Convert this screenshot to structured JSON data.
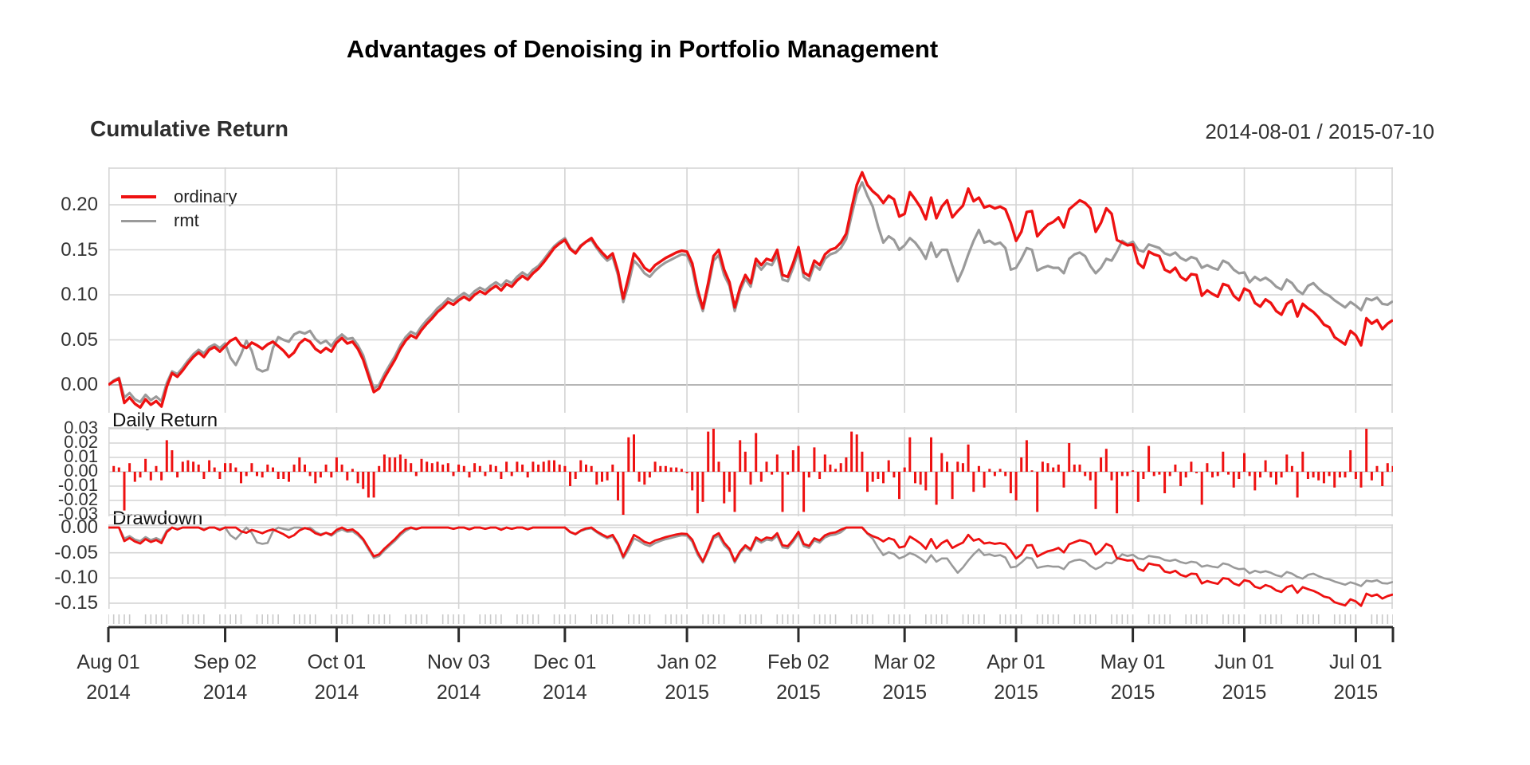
{
  "chart_title": "Advantages of Denoising in Portfolio Management",
  "header": {
    "panel_heading": "Cumulative Return",
    "date_range": "2014-08-01 / 2015-07-10"
  },
  "legend": [
    {
      "label": "ordinary",
      "color": "#ee1111"
    },
    {
      "label": "rmt",
      "color": "#9a9a9a"
    }
  ],
  "colors": {
    "ordinary": "#ee1111",
    "rmt": "#9a9a9a",
    "grid": "#d4d4d4",
    "zero_line": "#9e9e9e",
    "axis": "#2b2b2b",
    "minor_tick": "#c9c9c9",
    "text": "#333333"
  },
  "chart_data": {
    "type": "line",
    "title": "Advantages of Denoising in Portfolio Management",
    "date_range": "2014-08-01 / 2015-07-10",
    "n_days": 243,
    "x_ticks": [
      {
        "day": 0,
        "label": "Aug 01",
        "year": "2014"
      },
      {
        "day": 22,
        "label": "Sep 02",
        "year": "2014"
      },
      {
        "day": 43,
        "label": "Oct 01",
        "year": "2014"
      },
      {
        "day": 66,
        "label": "Nov 03",
        "year": "2014"
      },
      {
        "day": 86,
        "label": "Dec 01",
        "year": "2014"
      },
      {
        "day": 109,
        "label": "Jan 02",
        "year": "2015"
      },
      {
        "day": 130,
        "label": "Feb 02",
        "year": "2015"
      },
      {
        "day": 150,
        "label": "Mar 02",
        "year": "2015"
      },
      {
        "day": 171,
        "label": "Apr 01",
        "year": "2015"
      },
      {
        "day": 193,
        "label": "May 01",
        "year": "2015"
      },
      {
        "day": 214,
        "label": "Jun 01",
        "year": "2015"
      },
      {
        "day": 235,
        "label": "Jul 01",
        "year": "2015"
      }
    ],
    "panels": [
      {
        "name": "Cumulative Return",
        "kind": "line",
        "ylim": [
          -0.031,
          0.2416
        ],
        "yticks": [
          {
            "v": 0.2,
            "label": "0.20"
          },
          {
            "v": 0.15,
            "label": "0.15"
          },
          {
            "v": 0.1,
            "label": "0.10"
          },
          {
            "v": 0.05,
            "label": "0.05"
          },
          {
            "v": 0.0,
            "label": "0.00"
          }
        ],
        "series": [
          {
            "name": "ordinary",
            "color": "#ee1111",
            "values": [
              0.0,
              0.004,
              0.007,
              -0.02,
              -0.014,
              -0.021,
              -0.025,
              -0.016,
              -0.022,
              -0.018,
              -0.024,
              -0.002,
              0.013,
              0.009,
              0.016,
              0.024,
              0.031,
              0.036,
              0.031,
              0.039,
              0.042,
              0.037,
              0.043,
              0.049,
              0.052,
              0.044,
              0.041,
              0.047,
              0.044,
              0.04,
              0.045,
              0.048,
              0.043,
              0.038,
              0.031,
              0.036,
              0.046,
              0.051,
              0.048,
              0.04,
              0.036,
              0.041,
              0.037,
              0.047,
              0.052,
              0.046,
              0.048,
              0.04,
              0.028,
              0.01,
              -0.008,
              -0.004,
              0.008,
              0.018,
              0.028,
              0.04,
              0.049,
              0.055,
              0.052,
              0.061,
              0.068,
              0.074,
              0.081,
              0.086,
              0.092,
              0.089,
              0.094,
              0.098,
              0.094,
              0.1,
              0.104,
              0.101,
              0.106,
              0.11,
              0.105,
              0.112,
              0.109,
              0.116,
              0.121,
              0.117,
              0.124,
              0.129,
              0.136,
              0.144,
              0.152,
              0.157,
              0.161,
              0.151,
              0.146,
              0.154,
              0.159,
              0.163,
              0.154,
              0.147,
              0.141,
              0.146,
              0.126,
              0.096,
              0.12,
              0.146,
              0.139,
              0.13,
              0.126,
              0.133,
              0.137,
              0.141,
              0.144,
              0.147,
              0.149,
              0.148,
              0.135,
              0.106,
              0.085,
              0.113,
              0.143,
              0.15,
              0.128,
              0.114,
              0.086,
              0.108,
              0.122,
              0.113,
              0.14,
              0.133,
              0.14,
              0.138,
              0.15,
              0.122,
              0.12,
              0.135,
              0.153,
              0.125,
              0.121,
              0.138,
              0.133,
              0.145,
              0.15,
              0.152,
              0.158,
              0.168,
              0.196,
              0.222,
              0.236,
              0.222,
              0.215,
              0.21,
              0.202,
              0.21,
              0.206,
              0.187,
              0.19,
              0.214,
              0.206,
              0.197,
              0.184,
              0.208,
              0.185,
              0.198,
              0.205,
              0.186,
              0.193,
              0.199,
              0.218,
              0.204,
              0.208,
              0.197,
              0.199,
              0.196,
              0.198,
              0.195,
              0.18,
              0.16,
              0.17,
              0.192,
              0.193,
              0.165,
              0.172,
              0.178,
              0.181,
              0.186,
              0.175,
              0.195,
              0.2,
              0.205,
              0.202,
              0.196,
              0.17,
              0.18,
              0.196,
              0.19,
              0.161,
              0.158,
              0.155,
              0.156,
              0.135,
              0.13,
              0.148,
              0.145,
              0.143,
              0.128,
              0.125,
              0.13,
              0.12,
              0.116,
              0.123,
              0.122,
              0.099,
              0.105,
              0.101,
              0.098,
              0.112,
              0.11,
              0.099,
              0.094,
              0.107,
              0.104,
              0.091,
              0.087,
              0.095,
              0.091,
              0.082,
              0.078,
              0.09,
              0.094,
              0.076,
              0.09,
              0.085,
              0.081,
              0.075,
              0.067,
              0.064,
              0.053,
              0.049,
              0.045,
              0.06,
              0.055,
              0.044,
              0.074,
              0.068,
              0.072,
              0.062,
              0.068,
              0.072
            ]
          },
          {
            "name": "rmt",
            "color": "#9a9a9a",
            "values": [
              0.0,
              0.005,
              0.008,
              -0.014,
              -0.009,
              -0.016,
              -0.019,
              -0.011,
              -0.017,
              -0.013,
              -0.018,
              0.002,
              0.015,
              0.012,
              0.019,
              0.027,
              0.034,
              0.039,
              0.035,
              0.042,
              0.045,
              0.041,
              0.046,
              0.03,
              0.022,
              0.034,
              0.049,
              0.038,
              0.018,
              0.015,
              0.017,
              0.041,
              0.053,
              0.05,
              0.048,
              0.056,
              0.059,
              0.057,
              0.06,
              0.051,
              0.046,
              0.049,
              0.043,
              0.051,
              0.056,
              0.051,
              0.052,
              0.044,
              0.033,
              0.014,
              -0.004,
              0.0,
              0.012,
              0.022,
              0.032,
              0.044,
              0.053,
              0.059,
              0.056,
              0.065,
              0.072,
              0.078,
              0.085,
              0.09,
              0.096,
              0.093,
              0.098,
              0.102,
              0.098,
              0.104,
              0.108,
              0.105,
              0.11,
              0.114,
              0.11,
              0.116,
              0.113,
              0.12,
              0.125,
              0.121,
              0.128,
              0.132,
              0.139,
              0.147,
              0.154,
              0.159,
              0.163,
              0.152,
              0.147,
              0.155,
              0.159,
              0.161,
              0.152,
              0.144,
              0.138,
              0.142,
              0.122,
              0.092,
              0.112,
              0.138,
              0.132,
              0.124,
              0.12,
              0.127,
              0.132,
              0.136,
              0.139,
              0.142,
              0.145,
              0.144,
              0.13,
              0.1,
              0.082,
              0.108,
              0.138,
              0.144,
              0.122,
              0.11,
              0.082,
              0.104,
              0.118,
              0.109,
              0.135,
              0.128,
              0.135,
              0.133,
              0.144,
              0.117,
              0.115,
              0.13,
              0.148,
              0.12,
              0.116,
              0.133,
              0.128,
              0.14,
              0.145,
              0.147,
              0.152,
              0.162,
              0.188,
              0.212,
              0.225,
              0.21,
              0.198,
              0.176,
              0.158,
              0.165,
              0.161,
              0.15,
              0.155,
              0.163,
              0.158,
              0.15,
              0.14,
              0.158,
              0.142,
              0.15,
              0.15,
              0.132,
              0.115,
              0.128,
              0.145,
              0.16,
              0.172,
              0.158,
              0.16,
              0.156,
              0.158,
              0.152,
              0.128,
              0.13,
              0.14,
              0.152,
              0.15,
              0.127,
              0.13,
              0.132,
              0.13,
              0.13,
              0.124,
              0.14,
              0.145,
              0.147,
              0.143,
              0.132,
              0.124,
              0.13,
              0.14,
              0.138,
              0.148,
              0.16,
              0.156,
              0.159,
              0.15,
              0.148,
              0.156,
              0.154,
              0.152,
              0.146,
              0.144,
              0.147,
              0.141,
              0.138,
              0.142,
              0.14,
              0.13,
              0.133,
              0.13,
              0.128,
              0.138,
              0.135,
              0.128,
              0.124,
              0.125,
              0.114,
              0.12,
              0.116,
              0.119,
              0.115,
              0.109,
              0.106,
              0.117,
              0.113,
              0.105,
              0.101,
              0.11,
              0.113,
              0.107,
              0.102,
              0.099,
              0.094,
              0.09,
              0.086,
              0.092,
              0.088,
              0.083,
              0.096,
              0.094,
              0.097,
              0.09,
              0.089,
              0.093
            ]
          }
        ]
      },
      {
        "name": "Daily Return",
        "kind": "bar",
        "ylim": [
          -0.033,
          0.033
        ],
        "yticks": [
          {
            "v": 0.03,
            "label": "0.03"
          },
          {
            "v": 0.02,
            "label": "0.02"
          },
          {
            "v": 0.01,
            "label": "0.01"
          },
          {
            "v": 0.0,
            "label": "0.00"
          },
          {
            "v": -0.01,
            "label": "-0.01"
          },
          {
            "v": -0.02,
            "label": "-0.02"
          },
          {
            "v": -0.03,
            "label": "-0.03"
          }
        ],
        "derived_from": "ordinary",
        "derivation": "daily_diff",
        "bar_color": "#ee1111"
      },
      {
        "name": "Drawdown",
        "kind": "line",
        "ylim": [
          -0.161,
          0.006
        ],
        "yticks": [
          {
            "v": 0.0,
            "label": "0.00"
          },
          {
            "v": -0.05,
            "label": "-0.05"
          },
          {
            "v": -0.1,
            "label": "-0.10"
          },
          {
            "v": -0.15,
            "label": "-0.15"
          }
        ],
        "derived_from": [
          "ordinary",
          "rmt"
        ],
        "derivation": "drawdown_from_running_peak"
      }
    ]
  }
}
